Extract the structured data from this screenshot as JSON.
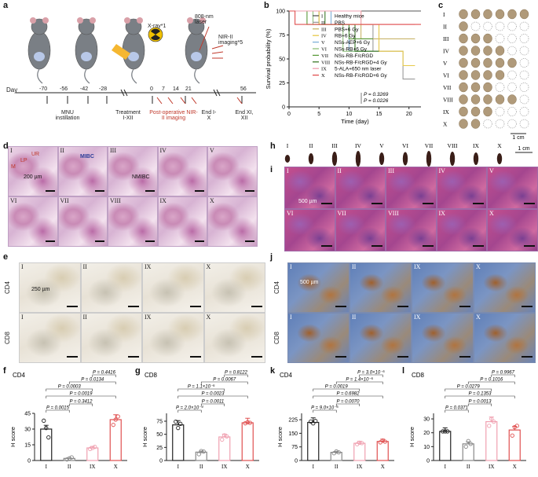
{
  "panel_letters": [
    "a",
    "b",
    "c",
    "d",
    "e",
    "f",
    "g",
    "h",
    "i",
    "j",
    "k",
    "l"
  ],
  "panel_a": {
    "day_label": "Day",
    "days": [
      "-70",
      "-56",
      "-42",
      "-28",
      "0",
      "7",
      "14",
      "21",
      "56"
    ],
    "xray": "X-ray*1",
    "laser": "808-nm laser",
    "nir": "NIR-II imaging*5",
    "mnu": "MNU instillation",
    "treatment": "Treatment I-XII",
    "postop": "Post-operative NIR-II imaging",
    "end1": "End I-X",
    "end2": "End XI, XII"
  },
  "panel_b": {
    "ylabel": "Survival probability (%)",
    "xlabel": "Time (day)",
    "yticks": [
      "0",
      "25",
      "50",
      "75",
      "100"
    ],
    "xticks": [
      "0",
      "5",
      "10",
      "15",
      "20"
    ],
    "legend": [
      {
        "num": "I",
        "name": "Healthy mice",
        "color": "#555555"
      },
      {
        "num": "II",
        "name": "PBS",
        "color": "#9a9a9a"
      },
      {
        "num": "III",
        "name": "PBS+6 Gy",
        "color": "#c9b46a"
      },
      {
        "num": "IV",
        "name": "RB+6 Gy",
        "color": "#e6c94a"
      },
      {
        "num": "V",
        "name": "NSs-AEP+6 Gy",
        "color": "#7fb0d8"
      },
      {
        "num": "VI",
        "name": "NSs-RB+6 Gy",
        "color": "#8ec07a"
      },
      {
        "num": "VII",
        "name": "NSs-RB-F/cRGD",
        "color": "#5a9a3a"
      },
      {
        "num": "VIII",
        "name": "NSs-RB-F/cRGD+4 Gy",
        "color": "#3d7a2a"
      },
      {
        "num": "IX",
        "name": "5-ALA+650 nm laser",
        "color": "#f0a0b0"
      },
      {
        "num": "X",
        "name": "NSs-RB-F/cRGD+6 Gy",
        "color": "#e05050"
      }
    ],
    "p1": "P = 0.3269",
    "p2": "P = 0.0226"
  },
  "panel_c": {
    "rows": [
      "I",
      "II",
      "III",
      "IV",
      "V",
      "VI",
      "VII",
      "VIII",
      "IX",
      "X"
    ],
    "scale": "1 cm"
  },
  "panel_d": {
    "groups": [
      "I",
      "II",
      "III",
      "IV",
      "V",
      "VI",
      "VII",
      "VIII",
      "IX",
      "X"
    ],
    "scale": "200 µm",
    "lp": "LP",
    "ur": "UR",
    "m": "M",
    "mibc": "MIBC",
    "nmibc": "NMIBC"
  },
  "panel_e": {
    "groups": [
      "I",
      "II",
      "IX",
      "X"
    ],
    "row1": "CD4",
    "row2": "CD8",
    "scale": "250 µm"
  },
  "panel_h": {
    "groups": [
      "I",
      "II",
      "III",
      "IV",
      "V",
      "VI",
      "VII",
      "VIII",
      "IX",
      "X"
    ],
    "scale": "1 cm"
  },
  "panel_i": {
    "groups": [
      "I",
      "II",
      "III",
      "IV",
      "V",
      "VI",
      "VII",
      "VIII",
      "IX",
      "X"
    ],
    "scale": "500 µm"
  },
  "panel_j": {
    "groups": [
      "I",
      "II",
      "IX",
      "X"
    ],
    "row1": "CD4",
    "row2": "CD8",
    "scale": "500 µm"
  },
  "chart_data": [
    {
      "panel": "f",
      "type": "bar",
      "title": "CD4",
      "ylabel": "H score",
      "categories": [
        "I",
        "II",
        "IX",
        "X"
      ],
      "values": [
        30,
        2,
        12,
        39
      ],
      "ylim": [
        0,
        45
      ],
      "yticks": [
        "0",
        "15",
        "30",
        "45"
      ],
      "colors": [
        "#222222",
        "#888888",
        "#f0a0b0",
        "#e05050"
      ],
      "points": [
        [
          38,
          31,
          22
        ],
        [
          1,
          2,
          3
        ],
        [
          11,
          12,
          13
        ],
        [
          34,
          39,
          42
        ]
      ],
      "pvalues": [
        {
          "a": 0,
          "b": 1,
          "p": "P = 0.0015"
        },
        {
          "a": 1,
          "b": 2,
          "p": "P = 0.3412"
        },
        {
          "a": 0,
          "b": 3,
          "p": "P = 0.0019"
        },
        {
          "a": 0,
          "b": 2,
          "p": "P = 0.0003"
        },
        {
          "a": 1,
          "b": 3,
          "p": "P = 0.0134"
        },
        {
          "a": 2,
          "b": 3,
          "p": "P = 0.4416"
        }
      ]
    },
    {
      "panel": "g",
      "type": "bar",
      "title": "CD8",
      "ylabel": "H score",
      "categories": [
        "I",
        "II",
        "IX",
        "X"
      ],
      "values": [
        68,
        16,
        45,
        72
      ],
      "ylim": [
        0,
        90
      ],
      "yticks": [
        "0",
        "25",
        "50",
        "75"
      ],
      "colors": [
        "#222222",
        "#888888",
        "#f0a0b0",
        "#e05050"
      ],
      "points": [
        [
          74,
          62,
          70
        ],
        [
          12,
          18,
          17
        ],
        [
          40,
          48,
          46
        ],
        [
          71,
          73,
          72
        ]
      ],
      "pvalues": [
        {
          "a": 0,
          "b": 1,
          "p": "P = 2.0×10⁻⁴"
        },
        {
          "a": 1,
          "b": 2,
          "p": "P = 0.0011"
        },
        {
          "a": 0,
          "b": 3,
          "p": "P = 0.0023"
        },
        {
          "a": 0,
          "b": 2,
          "p": "P = 1.1×10⁻⁵"
        },
        {
          "a": 1,
          "b": 3,
          "p": "P = 0.0067"
        },
        {
          "a": 2,
          "b": 3,
          "p": "P = 0.8122"
        }
      ]
    },
    {
      "panel": "k",
      "type": "bar",
      "title": "CD4",
      "ylabel": "H score",
      "categories": [
        "I",
        "II",
        "IX",
        "X"
      ],
      "values": [
        210,
        45,
        95,
        105
      ],
      "ylim": [
        0,
        260
      ],
      "yticks": [
        "0",
        "75",
        "150",
        "225"
      ],
      "colors": [
        "#222222",
        "#888888",
        "#f0a0b0",
        "#e05050"
      ],
      "points": [
        [
          215,
          205,
          218
        ],
        [
          40,
          50,
          45
        ],
        [
          90,
          98,
          96
        ],
        [
          100,
          110,
          104
        ]
      ],
      "pvalues": [
        {
          "a": 0,
          "b": 1,
          "p": "P = 9.0×10⁻⁵"
        },
        {
          "a": 1,
          "b": 2,
          "p": "P = 0.0070"
        },
        {
          "a": 0,
          "b": 3,
          "p": "P = 0.6982"
        },
        {
          "a": 0,
          "b": 2,
          "p": "P = 0.0019"
        },
        {
          "a": 1,
          "b": 3,
          "p": "P = 1.4×10⁻⁵"
        },
        {
          "a": 2,
          "b": 3,
          "p": "P = 3.0×10⁻⁵"
        }
      ]
    },
    {
      "panel": "l",
      "type": "bar",
      "title": "CD8",
      "ylabel": "H score",
      "categories": [
        "I",
        "II",
        "IX",
        "X"
      ],
      "values": [
        21,
        12,
        28,
        22
      ],
      "ylim": [
        0,
        34
      ],
      "yticks": [
        "0",
        "10",
        "20",
        "30"
      ],
      "colors": [
        "#222222",
        "#888888",
        "#f0a0b0",
        "#e05050"
      ],
      "points": [
        [
          21,
          21,
          21
        ],
        [
          10,
          14,
          12
        ],
        [
          25,
          30,
          28
        ],
        [
          18,
          24,
          25
        ]
      ],
      "pvalues": [
        {
          "a": 0,
          "b": 1,
          "p": "P = 0.0371"
        },
        {
          "a": 1,
          "b": 2,
          "p": "P = 0.0013"
        },
        {
          "a": 0,
          "b": 3,
          "p": "P = 0.1353"
        },
        {
          "a": 0,
          "b": 2,
          "p": "P = 0.0279"
        },
        {
          "a": 1,
          "b": 3,
          "p": "P = 0.1016"
        },
        {
          "a": 2,
          "b": 3,
          "p": "P = 0.9967"
        }
      ]
    },
    {
      "panel": "b",
      "type": "line",
      "xlabel": "Time (day)",
      "ylabel": "Survival probability (%)",
      "xlim": [
        0,
        22
      ],
      "ylim": [
        0,
        100
      ],
      "series": [
        {
          "name": "I",
          "color": "#555555",
          "steps": [
            [
              0,
              100
            ],
            [
              22,
              100
            ]
          ]
        },
        {
          "name": "II",
          "color": "#9a9a9a",
          "steps": [
            [
              0,
              100
            ],
            [
              5,
              100
            ],
            [
              5,
              86
            ],
            [
              14,
              86
            ],
            [
              14,
              58
            ],
            [
              19,
              58
            ],
            [
              19,
              29
            ],
            [
              21,
              29
            ]
          ]
        },
        {
          "name": "III",
          "color": "#c9b46a",
          "steps": [
            [
              0,
              100
            ],
            [
              12,
              100
            ],
            [
              12,
              71
            ],
            [
              21,
              71
            ]
          ]
        },
        {
          "name": "IV",
          "color": "#e6c94a",
          "steps": [
            [
              0,
              100
            ],
            [
              5,
              100
            ],
            [
              5,
              86
            ],
            [
              15,
              86
            ],
            [
              15,
              58
            ],
            [
              19,
              58
            ],
            [
              19,
              43
            ],
            [
              21,
              43
            ]
          ]
        },
        {
          "name": "V",
          "color": "#7fb0d8",
          "steps": [
            [
              0,
              100
            ],
            [
              7,
              100
            ],
            [
              7,
              86
            ],
            [
              10,
              86
            ],
            [
              10,
              58
            ],
            [
              14,
              58
            ]
          ]
        },
        {
          "name": "VI",
          "color": "#8ec07a",
          "steps": [
            [
              0,
              100
            ],
            [
              4,
              100
            ],
            [
              4,
              86
            ],
            [
              9,
              86
            ],
            [
              9,
              58
            ],
            [
              14,
              58
            ]
          ]
        },
        {
          "name": "VII",
          "color": "#5a9a3a",
          "steps": [
            [
              0,
              100
            ],
            [
              3,
              100
            ],
            [
              3,
              86
            ],
            [
              10,
              86
            ],
            [
              10,
              71
            ],
            [
              14,
              71
            ]
          ]
        },
        {
          "name": "VIII",
          "color": "#3d7a2a",
          "steps": [
            [
              0,
              100
            ],
            [
              6,
              100
            ],
            [
              6,
              86
            ],
            [
              11,
              86
            ],
            [
              11,
              58
            ],
            [
              15,
              58
            ]
          ]
        },
        {
          "name": "IX",
          "color": "#f0a0b0",
          "steps": [
            [
              0,
              100
            ],
            [
              12,
              100
            ],
            [
              12,
              86
            ],
            [
              21,
              86
            ]
          ]
        },
        {
          "name": "X",
          "color": "#e05050",
          "steps": [
            [
              0,
              100
            ],
            [
              1,
              100
            ],
            [
              1,
              86
            ],
            [
              22,
              86
            ]
          ]
        }
      ]
    }
  ]
}
